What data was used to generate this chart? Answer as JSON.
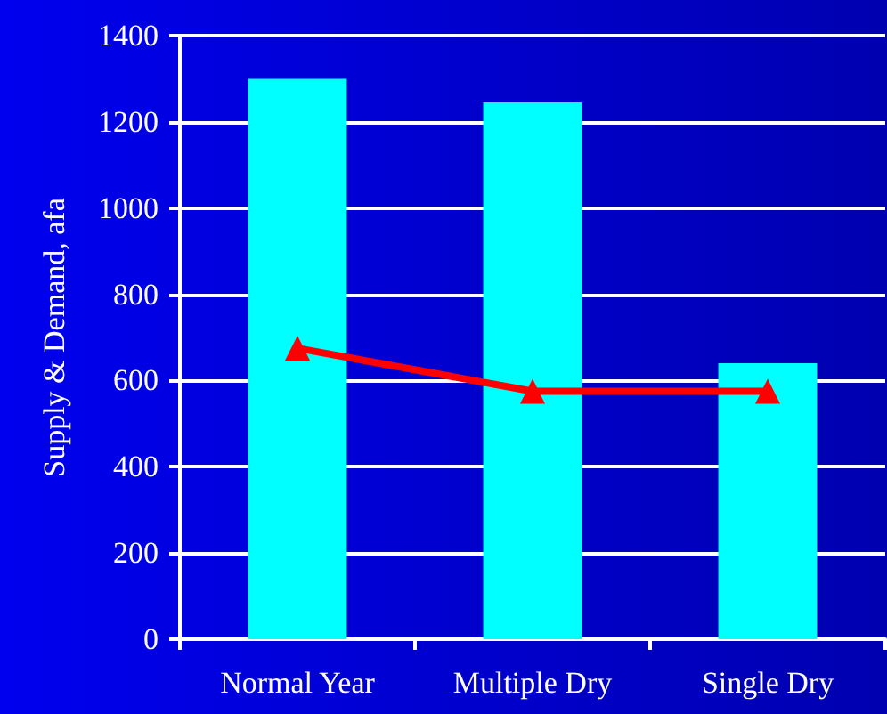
{
  "chart_data": {
    "type": "bar",
    "ylabel": "Supply & Demand, afa",
    "categories": [
      "Normal Year",
      "Multiple Dry",
      "Single Dry"
    ],
    "series": [
      {
        "color": "#00ffff",
        "values": [
          1300,
          1245,
          640
        ]
      },
      {
        "type": "line",
        "color": "#ff0000",
        "values": [
          675,
          575,
          575
        ],
        "marker": "triangle",
        "line_style": "solid"
      }
    ],
    "ylim": [
      0,
      1400
    ],
    "yticks": [
      0,
      200,
      400,
      600,
      800,
      1000,
      1200,
      1400
    ],
    "grid": "y"
  }
}
